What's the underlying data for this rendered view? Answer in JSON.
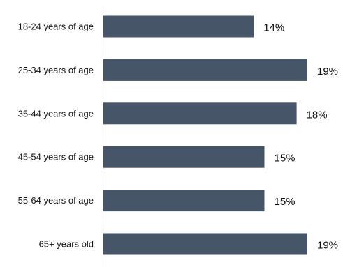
{
  "chart_data": {
    "type": "bar",
    "orientation": "horizontal",
    "categories": [
      "18-24 years of age",
      "25-34 years of age",
      "35-44 years of age",
      "45-54 years of age",
      "55-64 years of age",
      "65+ years old"
    ],
    "values": [
      14,
      19,
      18,
      15,
      15,
      19
    ],
    "value_labels": [
      "14%",
      "19%",
      "18%",
      "15%",
      "15%",
      "19%"
    ],
    "unit": "%",
    "xlim": [
      0,
      19
    ],
    "grid": false,
    "legend": "none",
    "colors": {
      "bar": "#475569",
      "axis": "#9e9e9e",
      "text": "#111111"
    }
  }
}
